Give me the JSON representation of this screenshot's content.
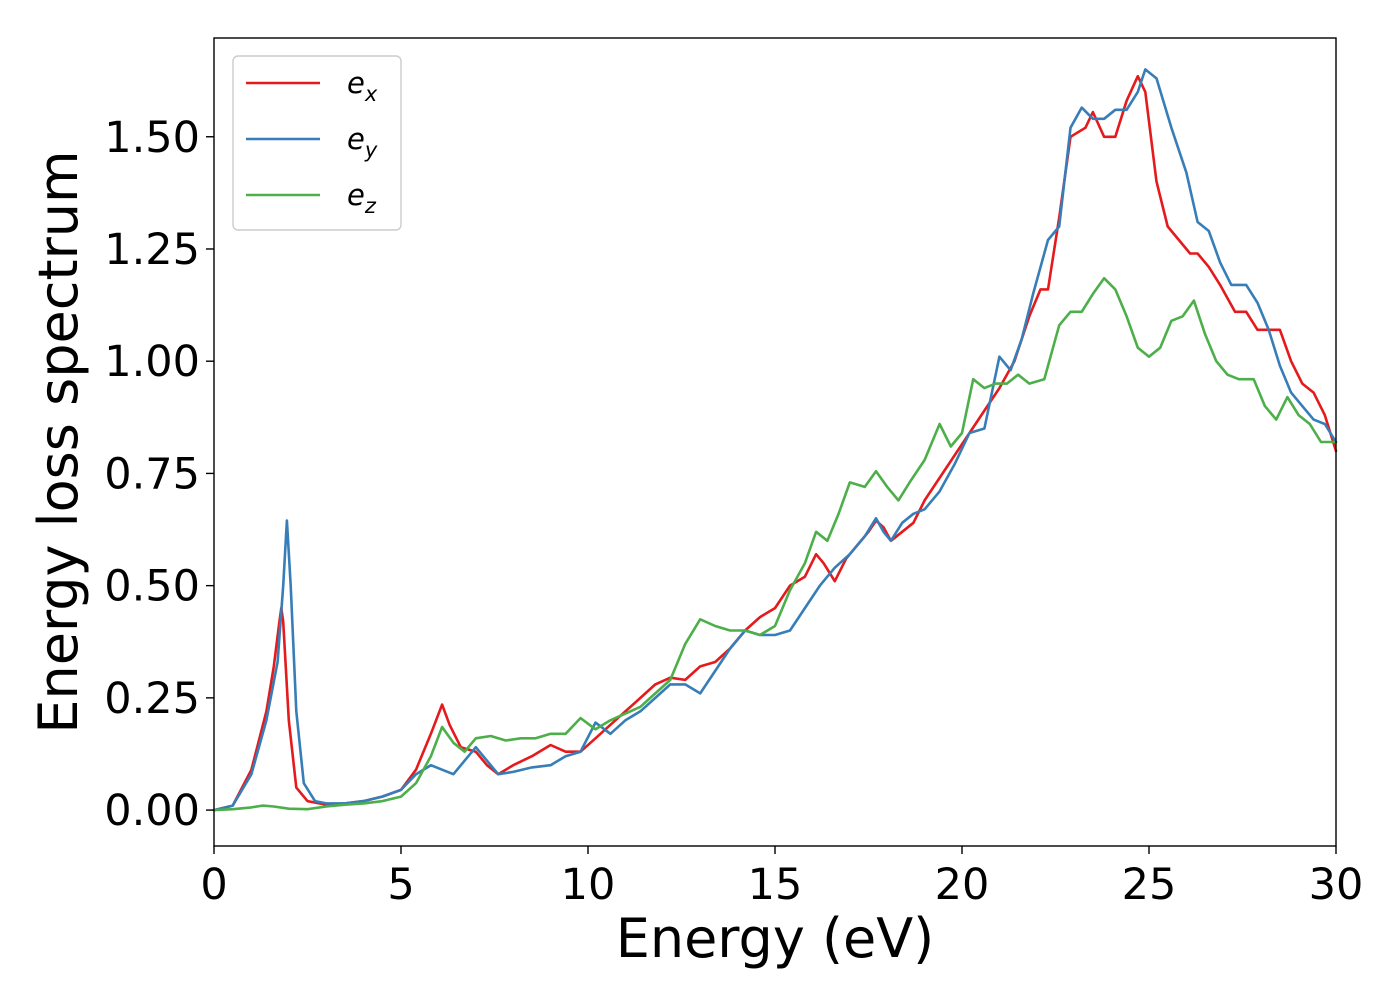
{
  "chart_data": {
    "type": "line",
    "title": "",
    "xlabel": "Energy (eV)",
    "ylabel": "Energy loss spectrum",
    "xlim": [
      0,
      30
    ],
    "ylim": [
      -0.08,
      1.72
    ],
    "x_ticks": [
      0,
      5,
      10,
      15,
      20,
      25,
      30
    ],
    "y_ticks": [
      0.0,
      0.25,
      0.5,
      0.75,
      1.0,
      1.25,
      1.5
    ],
    "x_tick_labels": [
      "0",
      "5",
      "10",
      "15",
      "20",
      "25",
      "30"
    ],
    "y_tick_labels": [
      "0.00",
      "0.25",
      "0.50",
      "0.75",
      "1.00",
      "1.25",
      "1.50"
    ],
    "grid": false,
    "legend_position": "top-left",
    "series": [
      {
        "name": "e_x",
        "label_base": "e",
        "label_sub": "x",
        "color": "#e41a1c",
        "points": [
          [
            0,
            0
          ],
          [
            0.5,
            0.01
          ],
          [
            1.0,
            0.09
          ],
          [
            1.4,
            0.22
          ],
          [
            1.6,
            0.32
          ],
          [
            1.75,
            0.42
          ],
          [
            1.8,
            0.45
          ],
          [
            1.85,
            0.42
          ],
          [
            2.0,
            0.2
          ],
          [
            2.2,
            0.05
          ],
          [
            2.5,
            0.02
          ],
          [
            3.0,
            0.012
          ],
          [
            3.5,
            0.015
          ],
          [
            4.0,
            0.02
          ],
          [
            4.5,
            0.03
          ],
          [
            5.0,
            0.045
          ],
          [
            5.4,
            0.09
          ],
          [
            5.8,
            0.17
          ],
          [
            6.1,
            0.235
          ],
          [
            6.3,
            0.19
          ],
          [
            6.6,
            0.14
          ],
          [
            7.0,
            0.13
          ],
          [
            7.3,
            0.1
          ],
          [
            7.6,
            0.08
          ],
          [
            8.0,
            0.1
          ],
          [
            8.5,
            0.12
          ],
          [
            9.0,
            0.145
          ],
          [
            9.4,
            0.13
          ],
          [
            9.8,
            0.13
          ],
          [
            10.2,
            0.16
          ],
          [
            10.6,
            0.19
          ],
          [
            11.0,
            0.22
          ],
          [
            11.4,
            0.25
          ],
          [
            11.8,
            0.28
          ],
          [
            12.2,
            0.295
          ],
          [
            12.6,
            0.29
          ],
          [
            13.0,
            0.32
          ],
          [
            13.4,
            0.33
          ],
          [
            13.8,
            0.36
          ],
          [
            14.2,
            0.4
          ],
          [
            14.6,
            0.43
          ],
          [
            15.0,
            0.45
          ],
          [
            15.4,
            0.5
          ],
          [
            15.8,
            0.52
          ],
          [
            16.1,
            0.57
          ],
          [
            16.3,
            0.55
          ],
          [
            16.6,
            0.51
          ],
          [
            16.9,
            0.56
          ],
          [
            17.2,
            0.59
          ],
          [
            17.5,
            0.62
          ],
          [
            17.7,
            0.645
          ],
          [
            17.9,
            0.63
          ],
          [
            18.1,
            0.6
          ],
          [
            18.4,
            0.62
          ],
          [
            18.7,
            0.64
          ],
          [
            19.0,
            0.69
          ],
          [
            19.4,
            0.74
          ],
          [
            19.8,
            0.79
          ],
          [
            20.2,
            0.84
          ],
          [
            20.6,
            0.89
          ],
          [
            21.0,
            0.94
          ],
          [
            21.4,
            1.0
          ],
          [
            21.8,
            1.1
          ],
          [
            22.1,
            1.16
          ],
          [
            22.3,
            1.16
          ],
          [
            22.6,
            1.32
          ],
          [
            22.9,
            1.5
          ],
          [
            23.1,
            1.51
          ],
          [
            23.3,
            1.52
          ],
          [
            23.5,
            1.555
          ],
          [
            23.8,
            1.5
          ],
          [
            24.1,
            1.5
          ],
          [
            24.4,
            1.58
          ],
          [
            24.7,
            1.635
          ],
          [
            24.9,
            1.6
          ],
          [
            25.2,
            1.4
          ],
          [
            25.5,
            1.3
          ],
          [
            25.8,
            1.27
          ],
          [
            26.1,
            1.24
          ],
          [
            26.3,
            1.24
          ],
          [
            26.6,
            1.21
          ],
          [
            26.9,
            1.17
          ],
          [
            27.3,
            1.11
          ],
          [
            27.6,
            1.11
          ],
          [
            27.9,
            1.07
          ],
          [
            28.2,
            1.07
          ],
          [
            28.5,
            1.07
          ],
          [
            28.8,
            1.0
          ],
          [
            29.1,
            0.95
          ],
          [
            29.4,
            0.93
          ],
          [
            29.7,
            0.88
          ],
          [
            30.0,
            0.8
          ]
        ]
      },
      {
        "name": "e_y",
        "label_base": "e",
        "label_sub": "y",
        "color": "#377eb8",
        "points": [
          [
            0,
            0
          ],
          [
            0.5,
            0.01
          ],
          [
            1.0,
            0.08
          ],
          [
            1.4,
            0.2
          ],
          [
            1.7,
            0.33
          ],
          [
            1.85,
            0.5
          ],
          [
            1.95,
            0.645
          ],
          [
            2.05,
            0.5
          ],
          [
            2.2,
            0.22
          ],
          [
            2.4,
            0.06
          ],
          [
            2.7,
            0.02
          ],
          [
            3.0,
            0.015
          ],
          [
            3.5,
            0.015
          ],
          [
            4.0,
            0.02
          ],
          [
            4.5,
            0.03
          ],
          [
            5.0,
            0.045
          ],
          [
            5.4,
            0.08
          ],
          [
            5.8,
            0.1
          ],
          [
            6.1,
            0.09
          ],
          [
            6.4,
            0.08
          ],
          [
            6.7,
            0.11
          ],
          [
            7.0,
            0.14
          ],
          [
            7.3,
            0.11
          ],
          [
            7.6,
            0.08
          ],
          [
            8.0,
            0.085
          ],
          [
            8.5,
            0.095
          ],
          [
            9.0,
            0.1
          ],
          [
            9.4,
            0.12
          ],
          [
            9.8,
            0.13
          ],
          [
            10.2,
            0.195
          ],
          [
            10.6,
            0.17
          ],
          [
            11.0,
            0.2
          ],
          [
            11.4,
            0.22
          ],
          [
            11.8,
            0.25
          ],
          [
            12.2,
            0.28
          ],
          [
            12.6,
            0.28
          ],
          [
            13.0,
            0.26
          ],
          [
            13.4,
            0.31
          ],
          [
            13.8,
            0.36
          ],
          [
            14.2,
            0.4
          ],
          [
            14.6,
            0.39
          ],
          [
            15.0,
            0.39
          ],
          [
            15.4,
            0.4
          ],
          [
            15.8,
            0.45
          ],
          [
            16.2,
            0.5
          ],
          [
            16.6,
            0.54
          ],
          [
            17.0,
            0.57
          ],
          [
            17.4,
            0.61
          ],
          [
            17.7,
            0.65
          ],
          [
            17.9,
            0.62
          ],
          [
            18.1,
            0.6
          ],
          [
            18.4,
            0.64
          ],
          [
            18.7,
            0.66
          ],
          [
            19.0,
            0.67
          ],
          [
            19.4,
            0.71
          ],
          [
            19.8,
            0.77
          ],
          [
            20.2,
            0.84
          ],
          [
            20.6,
            0.85
          ],
          [
            21.0,
            1.01
          ],
          [
            21.3,
            0.98
          ],
          [
            21.6,
            1.05
          ],
          [
            21.9,
            1.15
          ],
          [
            22.3,
            1.27
          ],
          [
            22.6,
            1.3
          ],
          [
            22.9,
            1.52
          ],
          [
            23.2,
            1.565
          ],
          [
            23.5,
            1.54
          ],
          [
            23.8,
            1.54
          ],
          [
            24.1,
            1.56
          ],
          [
            24.4,
            1.56
          ],
          [
            24.7,
            1.6
          ],
          [
            24.9,
            1.65
          ],
          [
            25.2,
            1.63
          ],
          [
            25.6,
            1.52
          ],
          [
            26.0,
            1.42
          ],
          [
            26.3,
            1.31
          ],
          [
            26.6,
            1.29
          ],
          [
            26.9,
            1.22
          ],
          [
            27.2,
            1.17
          ],
          [
            27.6,
            1.17
          ],
          [
            27.9,
            1.13
          ],
          [
            28.2,
            1.07
          ],
          [
            28.5,
            0.99
          ],
          [
            28.8,
            0.93
          ],
          [
            29.1,
            0.9
          ],
          [
            29.4,
            0.87
          ],
          [
            29.7,
            0.86
          ],
          [
            30.0,
            0.82
          ]
        ]
      },
      {
        "name": "e_z",
        "label_base": "e",
        "label_sub": "z",
        "color": "#4daf4a",
        "points": [
          [
            0,
            0
          ],
          [
            0.5,
            0.002
          ],
          [
            1.0,
            0.006
          ],
          [
            1.3,
            0.01
          ],
          [
            1.6,
            0.008
          ],
          [
            2.0,
            0.003
          ],
          [
            2.5,
            0.002
          ],
          [
            3.0,
            0.008
          ],
          [
            3.5,
            0.012
          ],
          [
            4.0,
            0.015
          ],
          [
            4.5,
            0.02
          ],
          [
            5.0,
            0.03
          ],
          [
            5.4,
            0.06
          ],
          [
            5.8,
            0.12
          ],
          [
            6.1,
            0.185
          ],
          [
            6.4,
            0.15
          ],
          [
            6.7,
            0.13
          ],
          [
            7.0,
            0.16
          ],
          [
            7.4,
            0.165
          ],
          [
            7.8,
            0.155
          ],
          [
            8.2,
            0.16
          ],
          [
            8.6,
            0.16
          ],
          [
            9.0,
            0.17
          ],
          [
            9.4,
            0.17
          ],
          [
            9.8,
            0.205
          ],
          [
            10.2,
            0.18
          ],
          [
            10.6,
            0.2
          ],
          [
            11.0,
            0.215
          ],
          [
            11.4,
            0.23
          ],
          [
            11.8,
            0.26
          ],
          [
            12.2,
            0.29
          ],
          [
            12.6,
            0.37
          ],
          [
            13.0,
            0.425
          ],
          [
            13.4,
            0.41
          ],
          [
            13.8,
            0.4
          ],
          [
            14.2,
            0.4
          ],
          [
            14.6,
            0.39
          ],
          [
            15.0,
            0.41
          ],
          [
            15.4,
            0.49
          ],
          [
            15.8,
            0.55
          ],
          [
            16.1,
            0.62
          ],
          [
            16.4,
            0.6
          ],
          [
            16.7,
            0.66
          ],
          [
            17.0,
            0.73
          ],
          [
            17.4,
            0.72
          ],
          [
            17.7,
            0.755
          ],
          [
            18.0,
            0.72
          ],
          [
            18.3,
            0.69
          ],
          [
            18.6,
            0.73
          ],
          [
            19.0,
            0.78
          ],
          [
            19.4,
            0.86
          ],
          [
            19.7,
            0.81
          ],
          [
            20.0,
            0.84
          ],
          [
            20.3,
            0.96
          ],
          [
            20.6,
            0.94
          ],
          [
            20.9,
            0.95
          ],
          [
            21.2,
            0.95
          ],
          [
            21.5,
            0.97
          ],
          [
            21.8,
            0.95
          ],
          [
            22.2,
            0.96
          ],
          [
            22.6,
            1.08
          ],
          [
            22.9,
            1.11
          ],
          [
            23.2,
            1.11
          ],
          [
            23.5,
            1.15
          ],
          [
            23.8,
            1.185
          ],
          [
            24.1,
            1.16
          ],
          [
            24.4,
            1.1
          ],
          [
            24.7,
            1.03
          ],
          [
            25.0,
            1.01
          ],
          [
            25.3,
            1.03
          ],
          [
            25.6,
            1.09
          ],
          [
            25.9,
            1.1
          ],
          [
            26.2,
            1.135
          ],
          [
            26.5,
            1.06
          ],
          [
            26.8,
            1.0
          ],
          [
            27.1,
            0.97
          ],
          [
            27.4,
            0.96
          ],
          [
            27.8,
            0.96
          ],
          [
            28.1,
            0.9
          ],
          [
            28.4,
            0.87
          ],
          [
            28.7,
            0.92
          ],
          [
            29.0,
            0.88
          ],
          [
            29.3,
            0.86
          ],
          [
            29.6,
            0.82
          ],
          [
            30.0,
            0.82
          ]
        ]
      }
    ]
  }
}
